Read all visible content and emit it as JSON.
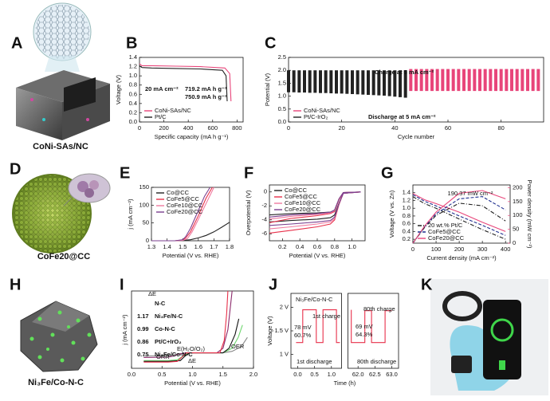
{
  "panel_labels": [
    "A",
    "B",
    "C",
    "D",
    "E",
    "F",
    "G",
    "H",
    "I",
    "J",
    "K"
  ],
  "images": {
    "A": "CoNi-SAs/NC",
    "D": "CoFe20@CC",
    "H": "Ni₃Fe/Co-N-C"
  },
  "chart_data": [
    {
      "type": "line",
      "xlabel": "Specific capacity (mA h g⁻¹)",
      "ylabel": "Voltage (V)",
      "xlim": [
        0,
        850
      ],
      "ylim": [
        0,
        1.4
      ],
      "xticks": [
        0,
        200,
        400,
        600,
        800
      ],
      "yticks": [
        {
          "value": 0,
          "label": "0.0"
        },
        0.2,
        0.4,
        0.6,
        0.8,
        {
          "value": 1,
          "label": "1.0"
        },
        1.2,
        1.4
      ],
      "annotations": [
        "20 mA cm⁻²",
        "719.2 mA h g⁻¹",
        "750.9 mA h g⁻¹"
      ],
      "legend": "lower-left",
      "series": [
        {
          "name": "CoNi-SAs/NC",
          "color": "#e8457a",
          "x": [
            0,
            20,
            100,
            300,
            500,
            700,
            740,
            750.9
          ],
          "values": [
            1.26,
            1.22,
            1.22,
            1.21,
            1.2,
            1.17,
            1.05,
            0.45
          ]
        },
        {
          "name": "Pt/C",
          "color": "#222222",
          "x": [
            0,
            20,
            100,
            300,
            500,
            680,
            710,
            719.2
          ],
          "values": [
            1.22,
            1.18,
            1.17,
            1.16,
            1.15,
            1.12,
            1.0,
            0.45
          ]
        }
      ]
    },
    {
      "type": "cycling",
      "xlabel": "Cycle number",
      "ylabel": "Potential (V)",
      "xlim": [
        0,
        96
      ],
      "ylim": [
        0,
        2.5
      ],
      "xticks": [
        0,
        20,
        40,
        60,
        80
      ],
      "yticks": [
        {
          "value": 0,
          "label": "0.0"
        },
        0.5,
        {
          "value": 1,
          "label": "1.0"
        },
        1.5,
        {
          "value": 2,
          "label": "2.0"
        },
        2.5
      ],
      "annotations": [
        "Charge at 5 mA cm⁻²",
        "Discharge at 5 mA cm⁻²"
      ],
      "legend": "lower-left",
      "series": [
        {
          "name": "CoNi-SAs/NC",
          "color": "#e8457a",
          "x": [
            46,
            48,
            50,
            52,
            54,
            56,
            58,
            60,
            62,
            64,
            66,
            68,
            70,
            72,
            74,
            76,
            78,
            80,
            82,
            84,
            86,
            88,
            90,
            92,
            94
          ],
          "charge_values": [
            2.05,
            2.05,
            2.05,
            2.05,
            2.05,
            2.05,
            2.05,
            2.05,
            2.05,
            2.05,
            2.05,
            2.05,
            2.05,
            2.05,
            2.05,
            2.05,
            2.05,
            2.05,
            2.05,
            2.05,
            2.05,
            2.05,
            2.05,
            2.05,
            2.05
          ],
          "discharge_values": [
            1.2,
            1.2,
            1.2,
            1.2,
            1.2,
            1.2,
            1.2,
            1.2,
            1.2,
            1.2,
            1.2,
            1.2,
            1.2,
            1.2,
            1.2,
            1.2,
            1.2,
            1.2,
            1.2,
            1.2,
            1.2,
            1.2,
            1.2,
            1.2,
            1.2
          ]
        },
        {
          "name": "Pt/C-IrO₂",
          "color": "#222222",
          "x": [
            0,
            2,
            4,
            6,
            8,
            10,
            12,
            14,
            16,
            18,
            20,
            22,
            24,
            26,
            28,
            30,
            32,
            34,
            36,
            38,
            40,
            42,
            44
          ],
          "charge_values": [
            2.0,
            2.0,
            2.0,
            2.0,
            2.0,
            2.0,
            2.0,
            2.0,
            2.0,
            2.0,
            2.0,
            2.0,
            2.0,
            2.0,
            2.0,
            2.0,
            2.0,
            2.0,
            2.0,
            2.0,
            2.0,
            2.0,
            2.0
          ],
          "discharge_values": [
            1.15,
            1.15,
            1.14,
            1.14,
            1.13,
            1.13,
            1.12,
            1.12,
            1.11,
            1.1,
            1.1,
            1.09,
            1.08,
            1.07,
            1.06,
            1.05,
            1.04,
            1.03,
            1.02,
            1.0,
            0.98,
            0.96,
            0.94
          ]
        }
      ]
    },
    {
      "type": "line",
      "xlabel": "Potential (V vs. RHE)",
      "ylabel": "j (mA cm⁻²)",
      "xlim": [
        1.3,
        1.8
      ],
      "ylim": [
        0,
        150
      ],
      "xticks": [
        1.3,
        1.4,
        1.5,
        1.6,
        1.7,
        1.8
      ],
      "yticks": [
        0,
        50,
        100,
        150
      ],
      "legend": "upper-left",
      "series": [
        {
          "name": "Co@CC",
          "color": "#222222",
          "x": [
            1.3,
            1.45,
            1.5,
            1.55,
            1.6,
            1.65,
            1.7,
            1.75,
            1.8
          ],
          "values": [
            0,
            0,
            1,
            3,
            8,
            15,
            25,
            38,
            52
          ]
        },
        {
          "name": "CoFe5@CC",
          "color": "#e8304a",
          "x": [
            1.3,
            1.45,
            1.5,
            1.52,
            1.55,
            1.6,
            1.65,
            1.69
          ],
          "values": [
            0,
            0,
            2,
            8,
            25,
            70,
            120,
            150
          ]
        },
        {
          "name": "CoFe10@CC",
          "color": "#f07aa0",
          "x": [
            1.3,
            1.45,
            1.5,
            1.53,
            1.56,
            1.6,
            1.65,
            1.7
          ],
          "values": [
            0,
            0,
            1,
            6,
            25,
            60,
            105,
            150
          ]
        },
        {
          "name": "CoFe20@CC",
          "color": "#7b3f8f",
          "x": [
            1.3,
            1.45,
            1.5,
            1.52,
            1.55,
            1.6,
            1.64,
            1.675
          ],
          "values": [
            0,
            0,
            3,
            12,
            35,
            85,
            125,
            150
          ]
        }
      ]
    },
    {
      "type": "line",
      "xlabel": "Potential (V vs. RHE)",
      "ylabel": "Overpotential (V)",
      "xlim": [
        0.05,
        1.15
      ],
      "ylim": [
        -7,
        1
      ],
      "xticks": [
        0.2,
        0.4,
        0.6,
        0.8,
        {
          "value": 1,
          "label": "1.0"
        }
      ],
      "yticks": [
        -6,
        -4,
        -2,
        0
      ],
      "legend": "upper-left",
      "series": [
        {
          "name": "Co@CC",
          "color": "#222222",
          "x": [
            0.05,
            0.3,
            0.6,
            0.75,
            0.8,
            0.85,
            0.9,
            1.1,
            0.9,
            0.85,
            0.8,
            0.75,
            0.6,
            0.3,
            0.05
          ],
          "values": [
            -4.3,
            -4.1,
            -3.9,
            -3.7,
            -3.3,
            -1.6,
            -0.2,
            0,
            -0.1,
            -1.0,
            -2.6,
            -2.9,
            -3.0,
            -3.1,
            -3.3
          ]
        },
        {
          "name": "CoFe5@CC",
          "color": "#e8304a",
          "x": [
            0.05,
            0.3,
            0.6,
            0.75,
            0.8,
            0.85,
            0.9,
            1.1,
            0.9,
            0.85,
            0.8,
            0.75,
            0.6,
            0.3,
            0.05
          ],
          "values": [
            -5.9,
            -5.5,
            -5.0,
            -4.6,
            -4.0,
            -1.8,
            -0.2,
            0,
            -0.1,
            -1.1,
            -2.8,
            -3.1,
            -3.4,
            -3.8,
            -4.4
          ]
        },
        {
          "name": "CoFe10@CC",
          "color": "#f07aa0",
          "x": [
            0.05,
            0.3,
            0.6,
            0.75,
            0.8,
            0.85,
            0.9,
            1.1,
            0.9,
            0.85,
            0.8,
            0.75,
            0.6,
            0.3,
            0.05
          ],
          "values": [
            -5.3,
            -5.0,
            -4.6,
            -4.3,
            -3.8,
            -1.7,
            -0.2,
            0,
            -0.1,
            -1.0,
            -2.7,
            -3.0,
            -3.2,
            -3.5,
            -3.9
          ]
        },
        {
          "name": "CoFe20@CC",
          "color": "#7b3f8f",
          "x": [
            0.05,
            0.3,
            0.6,
            0.75,
            0.8,
            0.85,
            0.9,
            1.1,
            0.9,
            0.85,
            0.8,
            0.75,
            0.6,
            0.3,
            0.05
          ],
          "values": [
            -4.8,
            -4.6,
            -4.3,
            -4.1,
            -3.6,
            -1.7,
            -0.2,
            0,
            -0.1,
            -1.0,
            -2.6,
            -2.9,
            -3.1,
            -3.3,
            -3.6
          ]
        }
      ]
    },
    {
      "type": "line",
      "xlabel": "Current density (mA cm⁻²)",
      "ylabel": "Voltage (V vs. Zn)",
      "y2label": "Power density (mW cm⁻²)",
      "y2_color": "#e8457a",
      "xlim": [
        0,
        420
      ],
      "ylim": [
        0.1,
        1.6
      ],
      "xticks": [
        0,
        100,
        200,
        300,
        400
      ],
      "yticks": [
        0.2,
        0.4,
        0.6,
        0.8,
        {
          "value": 1,
          "label": "1.0"
        },
        1.2,
        1.4
      ],
      "y2lim": [
        0,
        210
      ],
      "y2ticks": [
        0,
        50,
        100,
        150,
        200
      ],
      "annotations": [
        "190.37 mW cm⁻²"
      ],
      "legend": "lower-left",
      "series": [
        {
          "name": "20 wt.% Pt/C",
          "color": "#222222",
          "linestyle": "dashdot",
          "x": [
            0,
            50,
            100,
            200,
            300,
            400
          ],
          "values": [
            1.3,
            1.12,
            1.0,
            0.72,
            0.45,
            0.2
          ]
        },
        {
          "name": "CoFe5@CC",
          "color": "#1f2f8f",
          "linestyle": "dashed",
          "x": [
            0,
            50,
            100,
            200,
            300,
            400
          ],
          "values": [
            1.35,
            1.18,
            1.06,
            0.8,
            0.56,
            0.3
          ]
        },
        {
          "name": "CoFe20@CC",
          "color": "#e8457a",
          "linestyle": "solid",
          "x": [
            0,
            50,
            100,
            200,
            300,
            400
          ],
          "values": [
            1.38,
            1.22,
            1.12,
            0.9,
            0.64,
            0.4
          ]
        },
        {
          "axis": "y2",
          "color": "#222222",
          "linestyle": "dashdot",
          "x": [
            0,
            50,
            100,
            200,
            300,
            400
          ],
          "values": [
            0,
            56,
            100,
            144,
            135,
            80
          ]
        },
        {
          "axis": "y2",
          "color": "#1f2f8f",
          "linestyle": "dashed",
          "x": [
            0,
            50,
            100,
            200,
            300,
            400
          ],
          "values": [
            0,
            59,
            106,
            160,
            168,
            120
          ]
        },
        {
          "axis": "y2",
          "color": "#e8457a",
          "linestyle": "solid",
          "x": [
            0,
            50,
            100,
            200,
            300,
            400
          ],
          "values": [
            0,
            61,
            112,
            180,
            190,
            160
          ]
        }
      ]
    },
    {
      "type": "line",
      "xlabel": "Potential (V vs. RHE)",
      "ylabel": "j (mA cm⁻²)",
      "xlim": [
        0,
        2
      ],
      "ylim": [
        -10,
        40
      ],
      "xticks": [
        {
          "value": 0,
          "label": "0.0"
        },
        0.5,
        {
          "value": 1,
          "label": "1.0"
        },
        1.5,
        {
          "value": 2,
          "label": "2.0"
        }
      ],
      "annotations": [
        "ΔE",
        "ORR",
        "OER",
        "E(H₂O/O₂)",
        "ΔE"
      ],
      "series": [
        {
          "name": "N-C",
          "delta_e": null,
          "color": "#888888",
          "x": [
            0.2,
            0.6,
            0.7,
            0.8,
            1.0,
            1.5,
            1.65,
            1.8,
            1.9
          ],
          "values": [
            -2,
            -1.8,
            -1.2,
            -0.5,
            0,
            0,
            1,
            4,
            10
          ]
        },
        {
          "name": "Ni₃Fe/N-C",
          "delta_e": 1.17,
          "color": "#8b2a6b",
          "x": [
            0.2,
            0.6,
            0.7,
            0.75,
            0.9,
            1.4,
            1.5,
            1.58,
            1.65
          ],
          "values": [
            -3,
            -2.8,
            -2,
            -1,
            0,
            0,
            3,
            15,
            40
          ]
        },
        {
          "name": "Co-N-C",
          "delta_e": 0.99,
          "color": "#6fd66f",
          "x": [
            0.2,
            0.6,
            0.75,
            0.85,
            0.95,
            1.5,
            1.65,
            1.75,
            1.82
          ],
          "values": [
            -5,
            -5,
            -4.5,
            -2,
            0,
            0,
            3,
            10,
            18
          ]
        },
        {
          "name": "Pt/C+IrO₂",
          "delta_e": 0.86,
          "color": "#111111",
          "x": [
            0.2,
            0.6,
            0.8,
            0.88,
            0.95,
            1.5,
            1.6,
            1.7,
            1.76
          ],
          "values": [
            -5.5,
            -5.5,
            -5,
            -2,
            0,
            0,
            3,
            12,
            22
          ]
        },
        {
          "name": "Ni₃Fe/Co-N-C",
          "delta_e": 0.75,
          "color": "#e8304a",
          "x": [
            0.2,
            0.6,
            0.75,
            0.82,
            0.9,
            1.45,
            1.52,
            1.56,
            1.58
          ],
          "values": [
            -6,
            -6,
            -5.5,
            -3,
            0,
            0,
            8,
            25,
            40
          ]
        }
      ]
    },
    {
      "type": "line",
      "title": "Ni₃Fe/Co-N-C",
      "xlabel": "Time (h)",
      "ylabel": "Voltage (V)",
      "xlim": [
        -0.2,
        63.2
      ],
      "xbreak": [
        1.3,
        61.7
      ],
      "ylim": [
        0.7,
        2.3
      ],
      "xticks": [
        {
          "value": 0,
          "label": "0.0"
        },
        0.5,
        {
          "value": 1,
          "label": "1.0"
        },
        {
          "value": 62,
          "label": "62.0"
        },
        62.5,
        {
          "value": 63,
          "label": "63.0"
        }
      ],
      "yticks": [
        {
          "value": 1,
          "label": "1 V"
        },
        {
          "value": 1.5,
          "label": "1.5 V"
        },
        {
          "value": 2,
          "label": "2 V"
        }
      ],
      "annotations": [
        "1st charge",
        "78 mV",
        "60.7%",
        "1st discharge",
        "80th charge",
        "69 mV",
        "64.3%",
        "80th discharge"
      ],
      "series": [
        {
          "color": "#e8304a",
          "x": [
            -0.05,
            0.15,
            0.15,
            0.55,
            0.55,
            0.75,
            0.75,
            1.15,
            1.15,
            1.25,
            1.3,
            61.8,
            61.8,
            62.2,
            62.2,
            62.4,
            62.4,
            62.8,
            62.8,
            63.0
          ],
          "values": [
            1.25,
            1.25,
            1.95,
            1.95,
            1.25,
            1.25,
            1.95,
            1.95,
            1.25,
            1.25,
            null,
            1.95,
            1.25,
            1.25,
            1.93,
            1.93,
            1.25,
            1.25,
            1.93,
            1.93
          ]
        }
      ]
    }
  ]
}
